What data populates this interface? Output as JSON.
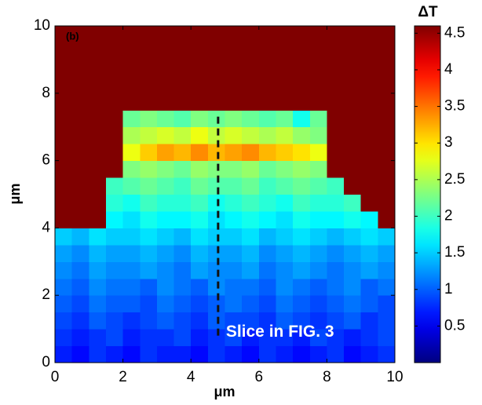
{
  "chart_data": {
    "type": "heatmap",
    "panel_label": "(b)",
    "x_label": "μm",
    "y_label": "μm",
    "colorbar_title": "ΔT",
    "colormap": "jet",
    "xlim": [
      0,
      10
    ],
    "ylim": [
      0,
      10
    ],
    "xticks": [
      0,
      2,
      4,
      6,
      8,
      10
    ],
    "yticks": [
      0,
      2,
      4,
      6,
      8,
      10
    ],
    "clim": [
      0,
      4.6
    ],
    "cticks": [
      0.5,
      1,
      1.5,
      2,
      2.5,
      3,
      3.5,
      4,
      4.5
    ],
    "annotation": {
      "text": "Slice in FIG. 3",
      "x": 4.8,
      "y": [
        0.8,
        7.4
      ]
    },
    "z": [
      [
        0.7,
        0.6,
        0.8,
        0.7,
        0.6,
        0.8,
        0.7,
        0.7,
        0.6,
        0.8,
        0.7,
        0.6,
        0.8,
        0.7,
        0.6,
        0.7,
        0.8,
        0.6,
        0.7,
        0.8
      ],
      [
        0.8,
        0.7,
        0.8,
        0.9,
        0.7,
        0.8,
        0.8,
        0.9,
        0.7,
        0.8,
        0.9,
        0.7,
        0.8,
        0.8,
        0.7,
        0.9,
        0.8,
        0.7,
        0.8,
        0.9
      ],
      [
        0.9,
        0.8,
        1.0,
        0.9,
        0.8,
        0.9,
        1.0,
        0.9,
        0.8,
        1.0,
        0.9,
        0.9,
        0.8,
        1.0,
        0.9,
        0.8,
        0.9,
        1.0,
        0.8,
        0.9
      ],
      [
        1.0,
        0.9,
        1.1,
        1.0,
        1.0,
        0.9,
        1.1,
        1.0,
        0.9,
        1.0,
        1.1,
        1.0,
        0.9,
        1.1,
        1.0,
        0.9,
        1.0,
        1.1,
        1.0,
        0.9
      ],
      [
        1.1,
        1.0,
        1.2,
        1.1,
        1.1,
        1.0,
        1.2,
        1.1,
        1.0,
        1.2,
        1.1,
        1.1,
        1.0,
        1.2,
        1.1,
        1.0,
        1.1,
        1.2,
        1.0,
        1.1
      ],
      [
        1.2,
        1.1,
        1.3,
        1.2,
        1.2,
        1.3,
        1.2,
        1.1,
        1.3,
        1.2,
        1.2,
        1.3,
        1.1,
        1.2,
        1.3,
        1.2,
        1.1,
        1.2,
        1.3,
        1.2
      ],
      [
        1.3,
        1.2,
        1.4,
        1.3,
        1.3,
        1.4,
        1.3,
        1.2,
        1.4,
        1.3,
        1.3,
        1.4,
        1.2,
        1.3,
        1.4,
        1.3,
        1.2,
        1.3,
        1.4,
        1.3
      ],
      [
        1.5,
        1.4,
        1.6,
        1.5,
        1.5,
        1.6,
        1.5,
        1.4,
        1.6,
        1.5,
        1.5,
        1.6,
        1.4,
        1.5,
        1.6,
        1.5,
        1.4,
        1.5,
        1.6,
        1.5
      ],
      [
        4.6,
        4.6,
        4.6,
        1.7,
        1.6,
        1.8,
        1.7,
        1.7,
        1.8,
        1.6,
        1.7,
        1.8,
        1.7,
        1.6,
        1.8,
        1.7,
        1.7,
        1.8,
        1.7,
        4.6
      ],
      [
        4.6,
        4.6,
        4.6,
        1.9,
        1.8,
        2.0,
        1.9,
        1.9,
        2.0,
        1.8,
        1.9,
        2.0,
        1.9,
        1.8,
        2.0,
        1.9,
        1.9,
        2.0,
        4.6,
        4.6
      ],
      [
        4.6,
        4.6,
        4.6,
        2.0,
        2.1,
        2.2,
        2.1,
        2.0,
        2.2,
        2.1,
        2.1,
        2.2,
        2.0,
        2.1,
        2.2,
        2.1,
        2.0,
        4.6,
        4.6,
        4.6
      ],
      [
        4.6,
        4.6,
        4.6,
        4.6,
        2.3,
        2.4,
        2.3,
        2.2,
        2.4,
        2.3,
        2.3,
        2.4,
        2.2,
        2.3,
        2.4,
        2.3,
        4.6,
        4.6,
        4.6,
        4.6
      ],
      [
        4.6,
        4.6,
        4.6,
        4.6,
        2.8,
        3.1,
        3.3,
        3.2,
        3.4,
        3.2,
        3.3,
        3.4,
        3.2,
        3.1,
        3.0,
        2.8,
        4.6,
        4.6,
        4.6,
        4.6
      ],
      [
        4.6,
        4.6,
        4.6,
        4.6,
        2.5,
        2.6,
        2.7,
        2.6,
        2.8,
        2.6,
        2.7,
        2.6,
        2.5,
        2.6,
        2.4,
        2.3,
        4.6,
        4.6,
        4.6,
        4.6
      ],
      [
        4.6,
        4.6,
        4.6,
        4.6,
        2.2,
        2.3,
        2.2,
        2.1,
        2.3,
        2.2,
        2.3,
        2.2,
        2.1,
        2.2,
        1.8,
        2.2,
        4.6,
        4.6,
        4.6,
        4.6
      ],
      [
        4.6,
        4.6,
        4.6,
        4.6,
        4.6,
        4.6,
        4.6,
        4.6,
        4.6,
        4.6,
        4.6,
        4.6,
        4.6,
        4.6,
        4.6,
        4.6,
        4.6,
        4.6,
        4.6,
        4.6
      ],
      [
        4.6,
        4.6,
        4.6,
        4.6,
        4.6,
        4.6,
        4.6,
        4.6,
        4.6,
        4.6,
        4.6,
        4.6,
        4.6,
        4.6,
        4.6,
        4.6,
        4.6,
        4.6,
        4.6,
        4.6
      ],
      [
        4.6,
        4.6,
        4.6,
        4.6,
        4.6,
        4.6,
        4.6,
        4.6,
        4.6,
        4.6,
        4.6,
        4.6,
        4.6,
        4.6,
        4.6,
        4.6,
        4.6,
        4.6,
        4.6,
        4.6
      ],
      [
        4.6,
        4.6,
        4.6,
        4.6,
        4.6,
        4.6,
        4.6,
        4.6,
        4.6,
        4.6,
        4.6,
        4.6,
        4.6,
        4.6,
        4.6,
        4.6,
        4.6,
        4.6,
        4.6,
        4.6
      ],
      [
        4.6,
        4.6,
        4.6,
        4.6,
        4.6,
        4.6,
        4.6,
        4.6,
        4.6,
        4.6,
        4.6,
        4.6,
        4.6,
        4.6,
        4.6,
        4.6,
        4.6,
        4.6,
        4.6,
        4.6
      ]
    ]
  }
}
